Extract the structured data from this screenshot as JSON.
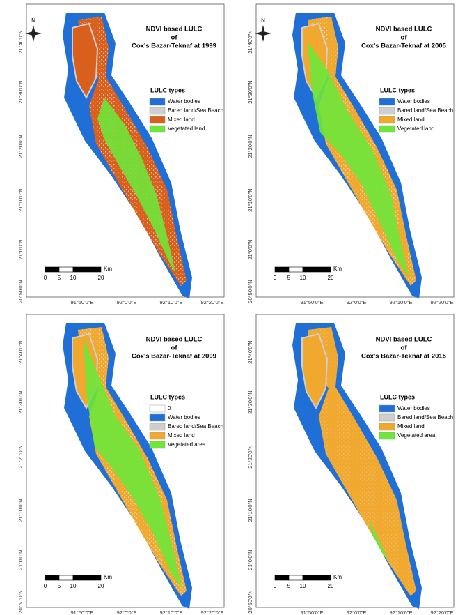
{
  "panels": [
    {
      "title": [
        "NDVI based LULC",
        "of",
        "Cox's Bazar-Teknaf at 1999"
      ],
      "north": "N",
      "legend_title": "LULC types",
      "legend": [
        {
          "label": "Water bodies",
          "color": "#1f6fd6"
        },
        {
          "label": "Bared land/Sea Beach",
          "color": "#cfcfcf"
        },
        {
          "label": "Mixed land",
          "color": "#d9601c"
        },
        {
          "label": "Vegetated land",
          "color": "#6ee63a"
        }
      ],
      "scale_unit": "Km",
      "scale_labels": [
        0,
        5,
        10,
        20
      ],
      "lat_labels": [
        "21°40'0\"N",
        "21°30'0\"N",
        "21°20'0\"N",
        "21°10'0\"N",
        "21°0'0\"N",
        "20°50'0\"N"
      ],
      "lon_labels": [
        "91°50'0\"E",
        "92°0'0\"E",
        "92°10'0\"E",
        "92°20'0\"E"
      ]
    },
    {
      "title": [
        "NDVI based LULC",
        "of",
        "Cox's Bazar-Teknaf at 2005"
      ],
      "north": "N",
      "legend_title": "LULC types",
      "legend": [
        {
          "label": "Water bodies",
          "color": "#1f6fd6"
        },
        {
          "label": "Bared land/Sea Beach",
          "color": "#cfcfcf"
        },
        {
          "label": "Mixed land",
          "color": "#f0a82e"
        },
        {
          "label": "Vegetated land",
          "color": "#6ee63a"
        }
      ],
      "scale_unit": "Km",
      "scale_labels": [
        0,
        5,
        10,
        20
      ],
      "lat_labels": [
        "21°40'0\"N",
        "21°30'0\"N",
        "21°20'0\"N",
        "21°10'0\"N",
        "21°0'0\"N",
        "20°50'0\"N"
      ],
      "lon_labels": [
        "91°50'0\"E",
        "92°0'0\"E",
        "92°10'0\"E",
        "92°20'0\"E"
      ]
    },
    {
      "title": [
        "NDVI based LULC",
        "of",
        "Cox's Bazar-Teknaf at 2009"
      ],
      "legend_title": "LULC types",
      "legend": [
        {
          "label": "0",
          "color": "#ffffff"
        },
        {
          "label": "Water bodies",
          "color": "#1f6fd6"
        },
        {
          "label": "Bared land/Sea Beach",
          "color": "#cfcfcf"
        },
        {
          "label": "Mixed land",
          "color": "#f0a82e"
        },
        {
          "label": "Vegetated area",
          "color": "#6ee63a"
        }
      ],
      "scale_unit": "Km",
      "scale_labels": [
        0,
        5,
        10,
        20
      ],
      "lat_labels": [
        "21°40'0\"N",
        "21°30'0\"N",
        "21°20'0\"N",
        "21°10'0\"N",
        "21°0'0\"N",
        "20°50'0\"N"
      ],
      "lon_labels": [
        "91°50'0\"E",
        "92°0'0\"E",
        "92°10'0\"E",
        "92°20'0\"E"
      ]
    },
    {
      "title": [
        "NDVI based LULC",
        "of",
        "Cox's Bazar-Teknaf at 2015"
      ],
      "legend_title": "LULC types",
      "legend": [
        {
          "label": "Water bodies",
          "color": "#1f6fd6"
        },
        {
          "label": "Bared land/Sea Beach",
          "color": "#cfcfcf"
        },
        {
          "label": "Mixed land",
          "color": "#f0a82e"
        },
        {
          "label": "Vegetated area",
          "color": "#6ee63a"
        }
      ],
      "scale_unit": "Km",
      "scale_labels": [
        0,
        5,
        10,
        20
      ],
      "lat_labels": [
        "21°40'0\"N",
        "21°30'0\"N",
        "21°20'0\"N",
        "21°10'0\"N",
        "21°0'0\"N",
        "20°50'0\"N"
      ],
      "lon_labels": [
        "91°50'0\"E",
        "92°0'0\"E",
        "92°10'0\"E",
        "92°20'0\"E"
      ]
    }
  ]
}
